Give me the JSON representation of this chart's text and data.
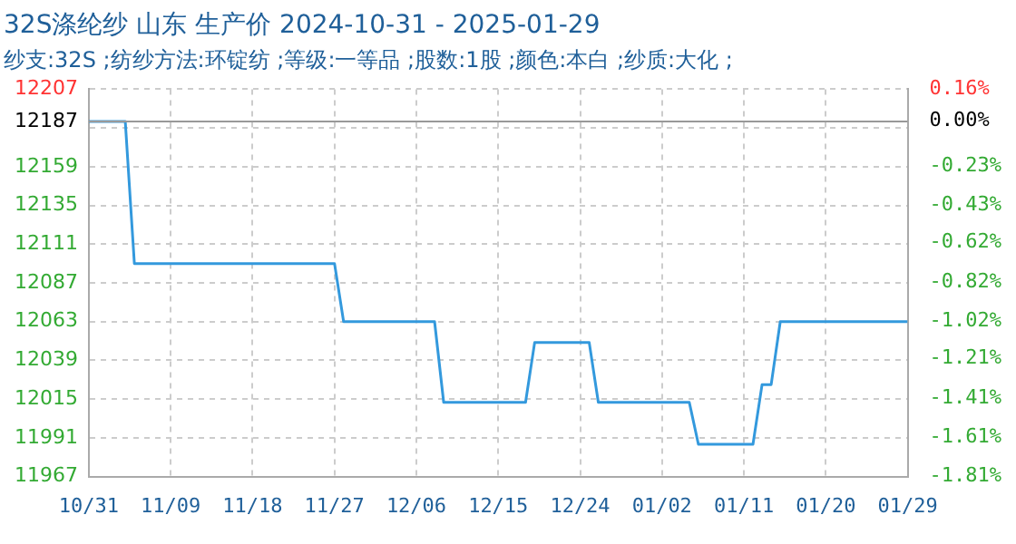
{
  "chart_data": {
    "type": "line",
    "title": "32S涤纶纱 山东 生产价 2024-10-31 - 2025-01-29",
    "subtitle": "纱支:32S ;纺纱方法:环锭纺 ;等级:一等品 ;股数:1股 ;颜色:本白 ;纱质:大化 ;",
    "x": [
      "2024-10-31",
      "2024-11-04",
      "2024-11-05",
      "2024-11-27",
      "2024-11-28",
      "2024-12-08",
      "2024-12-09",
      "2024-12-18",
      "2024-12-19",
      "2024-12-25",
      "2024-12-26",
      "2025-01-05",
      "2025-01-06",
      "2025-01-12",
      "2025-01-13",
      "2025-01-14",
      "2025-01-15",
      "2025-01-29"
    ],
    "series": [
      {
        "color": "#3399dd",
        "values": [
          12187,
          12187,
          12099,
          12099,
          12063,
          12063,
          12013,
          12013,
          12050,
          12050,
          12013,
          12013,
          11987,
          11987,
          12024,
          12024,
          12063,
          12063
        ]
      }
    ],
    "xlim": [
      "2024-10-31",
      "2025-01-29"
    ],
    "xticks": [
      {
        "value": "2024-10-31",
        "label": "10/31"
      },
      {
        "value": "2024-11-09",
        "label": "11/09"
      },
      {
        "value": "2024-11-18",
        "label": "11/18"
      },
      {
        "value": "2024-11-27",
        "label": "11/27"
      },
      {
        "value": "2024-12-06",
        "label": "12/06"
      },
      {
        "value": "2024-12-15",
        "label": "12/15"
      },
      {
        "value": "2024-12-24",
        "label": "12/24"
      },
      {
        "value": "2025-01-02",
        "label": "01/02"
      },
      {
        "value": "2025-01-11",
        "label": "01/11"
      },
      {
        "value": "2025-01-20",
        "label": "01/20"
      },
      {
        "value": "2025-01-29",
        "label": "01/29"
      }
    ],
    "ylim": [
      11967,
      12207
    ],
    "yticks": [
      11967,
      11991,
      12015,
      12039,
      12063,
      12087,
      12111,
      12135,
      12159,
      {
        "value": 12183,
        "label": null
      },
      12187,
      12207
    ],
    "y2lim": [
      -1.81,
      0.16
    ],
    "y2ticks": [
      {
        "value": -1.81,
        "label": "-1.81%"
      },
      {
        "value": -1.61,
        "label": "-1.61%"
      },
      {
        "value": -1.41,
        "label": "-1.41%"
      },
      {
        "value": -1.21,
        "label": "-1.21%"
      },
      {
        "value": -1.02,
        "label": "-1.02%"
      },
      {
        "value": -0.82,
        "label": "-0.82%"
      },
      {
        "value": -0.62,
        "label": "-0.62%"
      },
      {
        "value": -0.43,
        "label": "-0.43%"
      },
      {
        "value": -0.23,
        "label": "-0.23%"
      },
      {
        "value": 0,
        "label": "0.00%"
      },
      {
        "value": 0.16,
        "label": "0.16%"
      }
    ],
    "ref_lines": [
      {
        "axis": "y",
        "value": 12187,
        "color": "#999999"
      }
    ],
    "grid": true,
    "legend": false,
    "marker": "none",
    "line_style": "solid"
  }
}
